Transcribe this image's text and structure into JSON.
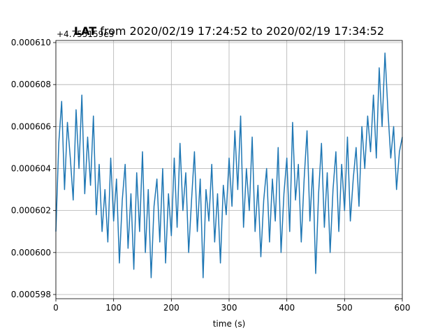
{
  "chart_data": {
    "type": "line",
    "title": "LAT from 2020/02/19 17:24:52 to 2020/02/19 17:34:52",
    "title_bold_prefix": "LAT",
    "title_rest": " from 2020/02/19 17:24:52 to 2020/02/19 17:34:52",
    "xlabel": "time (s)",
    "ylabel": "",
    "y_offset_label": "+4.755159e3",
    "xlim": [
      0,
      600
    ],
    "ylim": [
      0.0005978,
      0.0006101
    ],
    "x_ticks": [
      0,
      100,
      200,
      300,
      400,
      500,
      600
    ],
    "x_tick_labels": [
      "0",
      "100",
      "200",
      "300",
      "400",
      "500",
      "600"
    ],
    "y_ticks": [
      0.000598,
      0.0006,
      0.000602,
      0.000604,
      0.000606,
      0.000608,
      0.00061
    ],
    "y_tick_labels": [
      "0.000598",
      "0.000600",
      "0.000602",
      "0.000604",
      "0.000606",
      "0.000608",
      "0.000610"
    ],
    "grid": true,
    "series": [
      {
        "color": "#1f77b4",
        "x": [
          0,
          5,
          10,
          15,
          20,
          25,
          30,
          35,
          40,
          45,
          50,
          55,
          60,
          65,
          70,
          75,
          80,
          85,
          90,
          95,
          100,
          105,
          110,
          115,
          120,
          125,
          130,
          135,
          140,
          145,
          150,
          155,
          160,
          165,
          170,
          175,
          180,
          185,
          190,
          195,
          200,
          205,
          210,
          215,
          220,
          225,
          230,
          235,
          240,
          245,
          250,
          255,
          260,
          265,
          270,
          275,
          280,
          285,
          290,
          295,
          300,
          305,
          310,
          315,
          320,
          325,
          330,
          335,
          340,
          345,
          350,
          355,
          360,
          365,
          370,
          375,
          380,
          385,
          390,
          395,
          400,
          405,
          410,
          415,
          420,
          425,
          430,
          435,
          440,
          445,
          450,
          455,
          460,
          465,
          470,
          475,
          480,
          485,
          490,
          495,
          500,
          505,
          510,
          515,
          520,
          525,
          530,
          535,
          540,
          545,
          550,
          555,
          560,
          565,
          570,
          575,
          580,
          585,
          590,
          595,
          600
        ],
        "y": [
          0.000601,
          0.0006052,
          0.0006072,
          0.000603,
          0.0006062,
          0.0006045,
          0.0006025,
          0.0006068,
          0.000604,
          0.0006075,
          0.0006028,
          0.0006055,
          0.0006032,
          0.0006065,
          0.0006018,
          0.0006042,
          0.000601,
          0.000603,
          0.0006005,
          0.0006045,
          0.0006015,
          0.0006035,
          0.0005995,
          0.0006025,
          0.0006042,
          0.0006002,
          0.0006028,
          0.0005992,
          0.0006038,
          0.000601,
          0.0006048,
          0.0006,
          0.000603,
          0.0005988,
          0.0006022,
          0.0006035,
          0.0006005,
          0.000604,
          0.0005995,
          0.0006028,
          0.0006008,
          0.0006045,
          0.0006012,
          0.0006052,
          0.000602,
          0.0006038,
          0.0006,
          0.0006025,
          0.0006048,
          0.000601,
          0.0006035,
          0.0005988,
          0.000603,
          0.0006015,
          0.0006042,
          0.0006005,
          0.0006028,
          0.0005995,
          0.0006032,
          0.0006018,
          0.0006045,
          0.0006022,
          0.0006058,
          0.000603,
          0.0006065,
          0.0006012,
          0.000604,
          0.000602,
          0.0006055,
          0.000601,
          0.0006032,
          0.0005998,
          0.0006025,
          0.000604,
          0.0006005,
          0.0006035,
          0.0006015,
          0.000605,
          0.0006,
          0.0006028,
          0.0006045,
          0.000601,
          0.0006062,
          0.0006025,
          0.0006042,
          0.0006005,
          0.0006035,
          0.0006058,
          0.0006015,
          0.000604,
          0.000599,
          0.0006028,
          0.0006052,
          0.0006012,
          0.0006038,
          0.0006,
          0.000603,
          0.0006048,
          0.000601,
          0.0006042,
          0.000602,
          0.0006055,
          0.0006015,
          0.0006035,
          0.000605,
          0.0006022,
          0.000606,
          0.000604,
          0.0006065,
          0.0006048,
          0.0006075,
          0.0006045,
          0.0006088,
          0.000606,
          0.0006095,
          0.0006068,
          0.0006045,
          0.000606,
          0.000603,
          0.0006048,
          0.0006055
        ]
      }
    ]
  }
}
